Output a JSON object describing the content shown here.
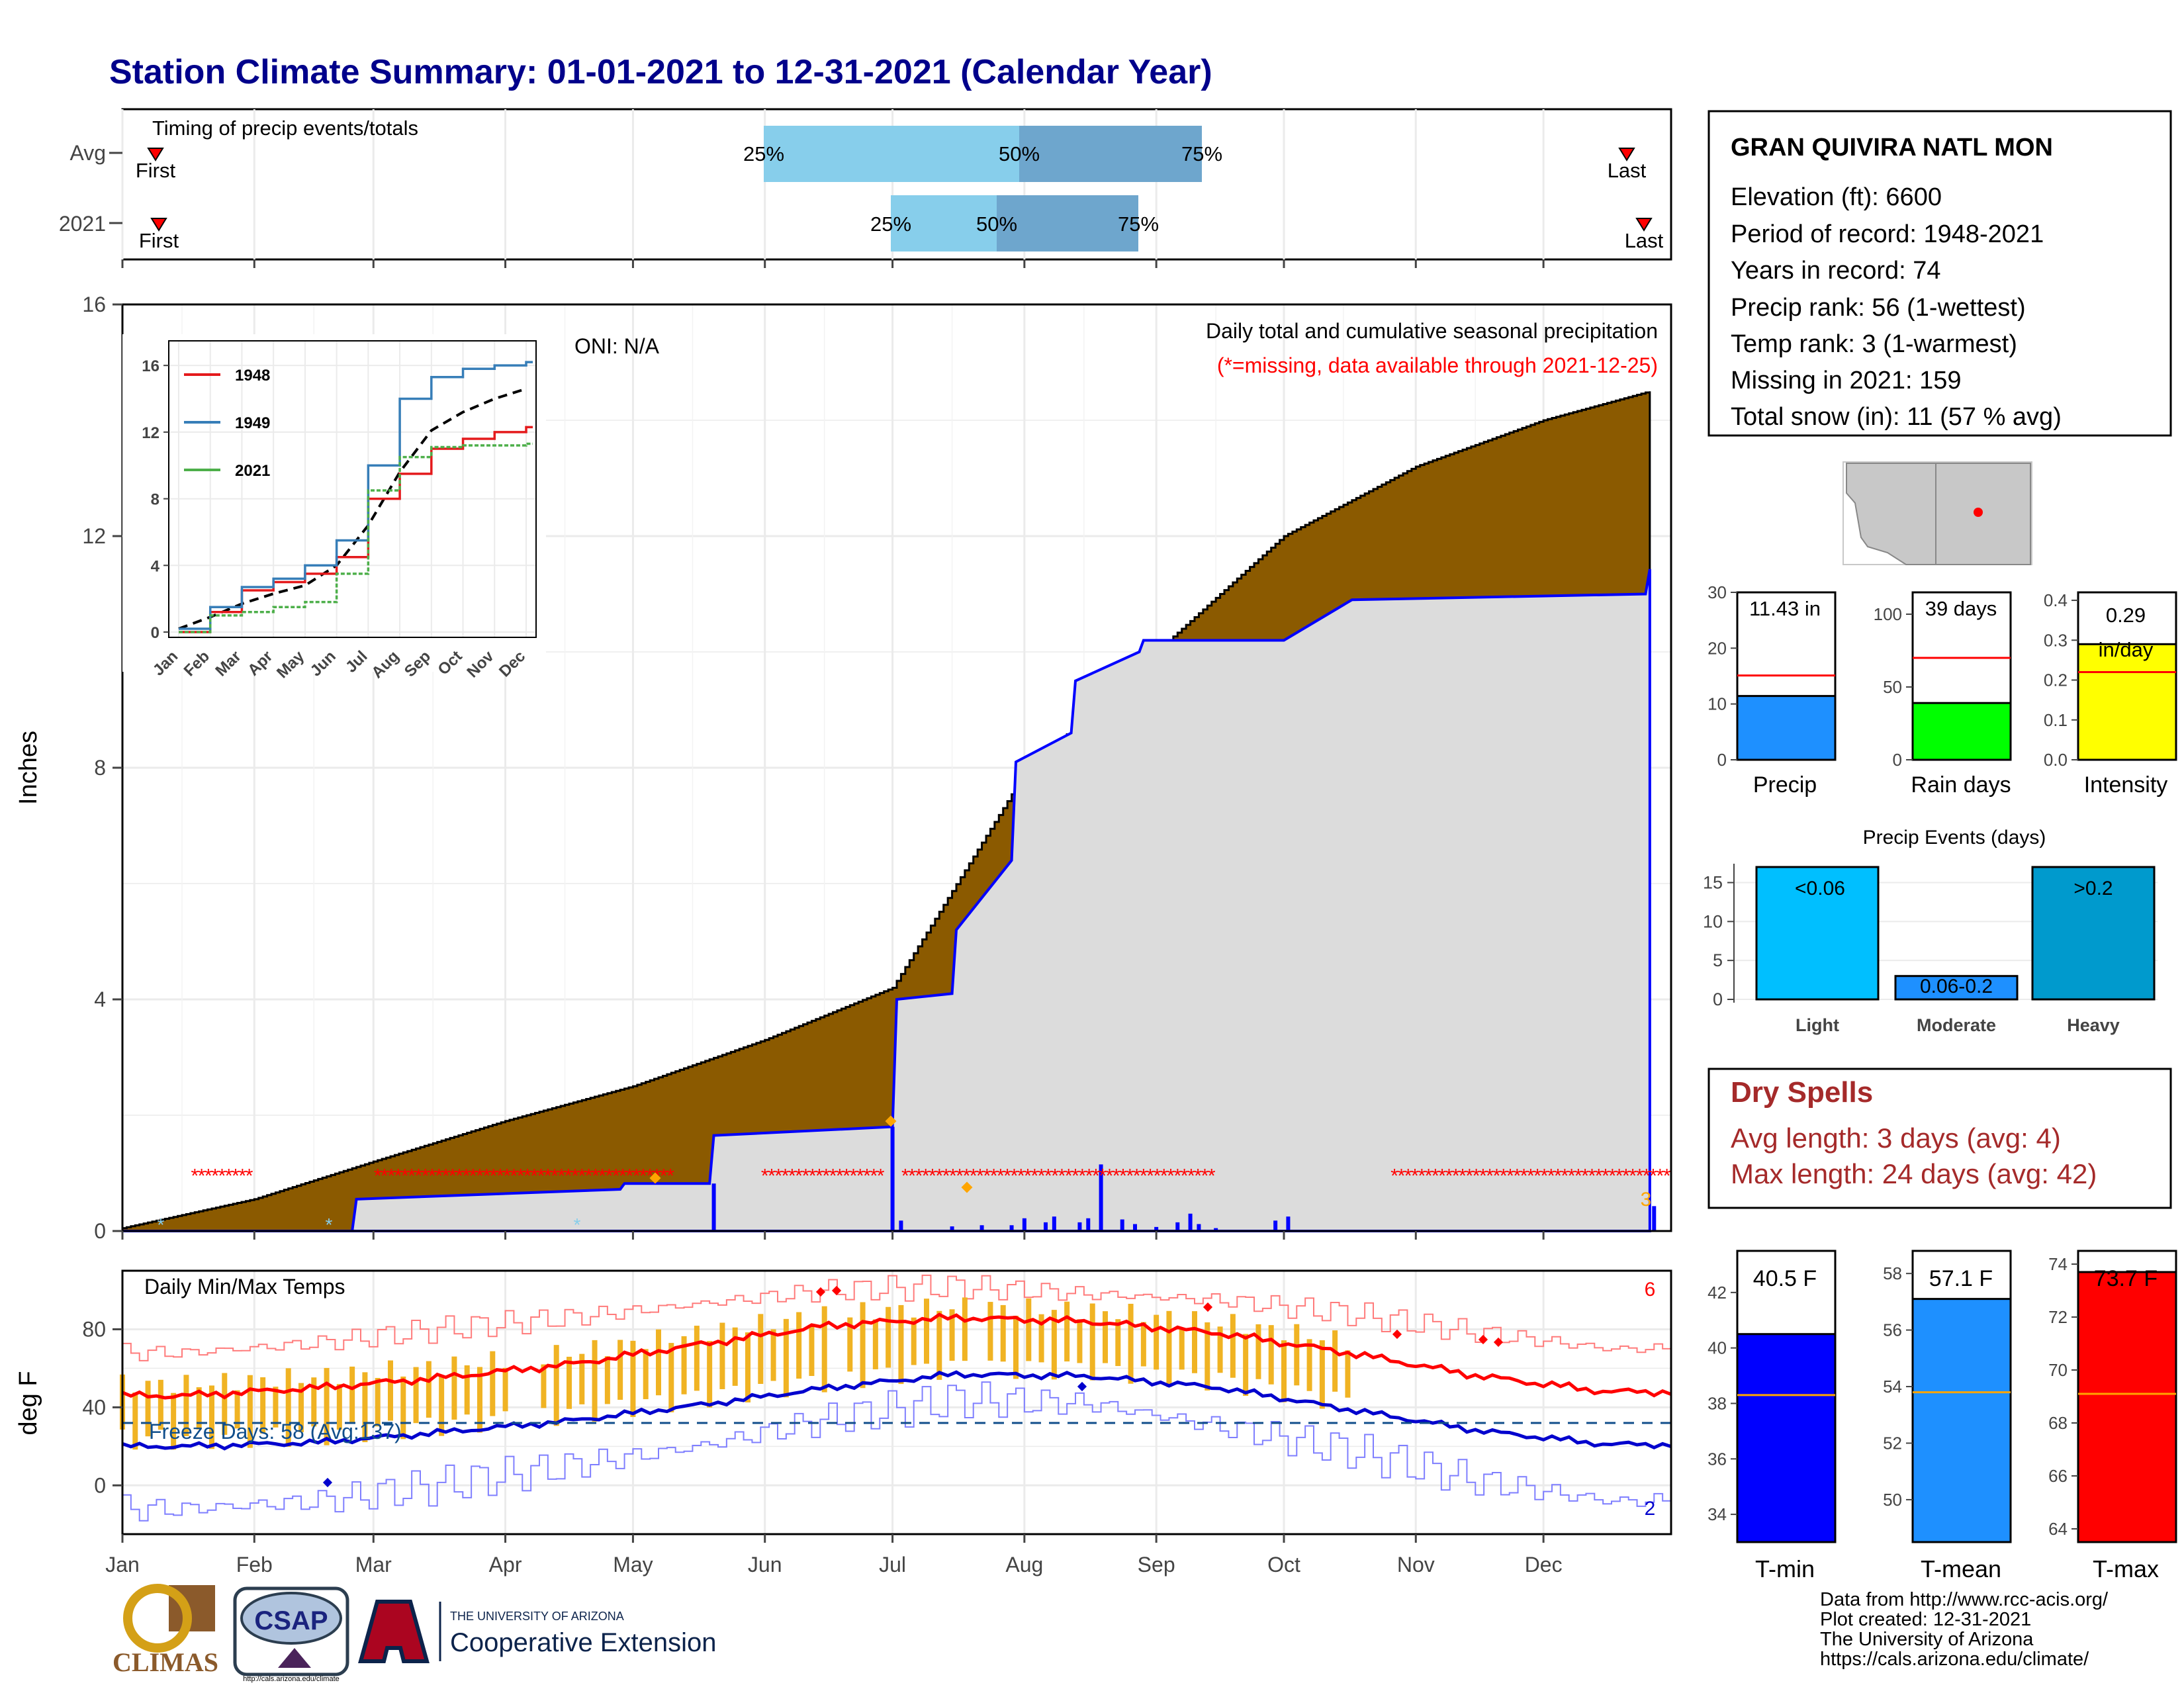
{
  "title": "Station Climate Summary: 01-01-2021 to 12-31-2021 (Calendar Year)",
  "timing": {
    "label": "Timing of precip events/totals",
    "rows": [
      {
        "name": "Avg",
        "first_label": "First",
        "last_label": "Last",
        "p25_label": "25%",
        "p50_label": "50%",
        "p75_label": "75%"
      },
      {
        "name": "2021",
        "first_label": "First",
        "last_label": "Last",
        "p25_label": "25%",
        "p50_label": "50%",
        "p75_label": "75%"
      }
    ]
  },
  "main_panel": {
    "ylabel": "Inches",
    "caption": "Daily total and cumulative seasonal precipitation",
    "missing_note": "(*=missing, data available through 2021-12-25)",
    "oni": "ONI: N/A",
    "corner_count": "3",
    "y_ticks": [
      "0",
      "4",
      "8",
      "12",
      "16"
    ]
  },
  "inset": {
    "y_ticks": [
      "0",
      "4",
      "8",
      "12",
      "16"
    ],
    "x_ticks": [
      "Jan",
      "Feb",
      "Mar",
      "Apr",
      "May",
      "Jun",
      "Jul",
      "Aug",
      "Sep",
      "Oct",
      "Nov",
      "Dec"
    ],
    "legend": [
      "1948",
      "1949",
      "2021"
    ]
  },
  "temp_panel": {
    "label": "Daily Min/Max Temps",
    "ylabel": "deg F",
    "freeze_text": "Freeze Days: 58 (Avg:137)",
    "count_max": "6",
    "count_min": "2",
    "y_ticks": [
      "0",
      "40",
      "80"
    ]
  },
  "months": [
    "Jan",
    "Feb",
    "Mar",
    "Apr",
    "May",
    "Jun",
    "Jul",
    "Aug",
    "Sep",
    "Oct",
    "Nov",
    "Dec"
  ],
  "station": {
    "name": "GRAN QUIVIRA NATL MON",
    "lines": [
      "Elevation (ft): 6600",
      "Period of record: 1948-2021",
      "Years in record: 74",
      "Precip rank: 56 (1-wettest)",
      "Temp rank: 3 (1-warmest)",
      "Missing in 2021: 159",
      "Total snow (in): 11 (57 % avg)"
    ]
  },
  "mini_bars": [
    {
      "label": "Precip",
      "value_label": "11.43 in",
      "ticks": [
        "0",
        "10",
        "20",
        "30"
      ]
    },
    {
      "label": "Rain days",
      "value_label": "39 days",
      "ticks": [
        "0",
        "50",
        "100"
      ]
    },
    {
      "label": "Intensity",
      "value_label": "0.29",
      "value_label2": "in/day",
      "ticks": [
        "0.0",
        "0.1",
        "0.2",
        "0.3",
        "0.4"
      ]
    }
  ],
  "events": {
    "title": "Precip Events (days)",
    "ticks": [
      "0",
      "5",
      "10",
      "15"
    ],
    "bars": [
      {
        "category": "Light",
        "label": "<0.06"
      },
      {
        "category": "Moderate",
        "label": "0.06-0.2"
      },
      {
        "category": "Heavy",
        "label": ">0.2"
      }
    ]
  },
  "dry_spells": {
    "title": "Dry Spells",
    "avg_line": "Avg length: 3 days (avg: 4)",
    "max_line": "Max length: 24 days (avg: 42)"
  },
  "temp_bars": [
    {
      "label": "T-min",
      "value_label": "40.5 F",
      "ticks": [
        "34",
        "36",
        "38",
        "40",
        "42"
      ]
    },
    {
      "label": "T-mean",
      "value_label": "57.1 F",
      "ticks": [
        "50",
        "52",
        "54",
        "56",
        "58"
      ]
    },
    {
      "label": "T-max",
      "value_label": "73.7 F",
      "ticks": [
        "64",
        "66",
        "68",
        "70",
        "72",
        "74"
      ]
    }
  ],
  "footer": {
    "lines": [
      "Data from http://www.rcc-acis.org/",
      "Plot created: 12-31-2021",
      "The University of Arizona",
      "https://cals.arizona.edu/climate/"
    ]
  },
  "logos": {
    "climas": "CLIMAS",
    "csap": "CSAP",
    "csap_url": "http://cals.arizona.edu/climate",
    "ua_line1": "THE UNIVERSITY OF ARIZONA",
    "ua_line2": "Cooperative Extension"
  },
  "colors": {
    "title": "#00008b",
    "avg_fill": "#8b5a00",
    "current_fill": "#dcdcdc",
    "current_line": "#0000ff",
    "missing": "#ff0000",
    "iqr_light": "#87ceeb",
    "iqr_dark": "#6ea6cd",
    "tmax": "#ff0000",
    "tmin": "#0000cd",
    "daily_bar": "#f0b323",
    "precip_bar": "#1e90ff",
    "rain_bar": "#00ff00",
    "intensity_bar": "#ffff00",
    "light_bar": "#00bfff",
    "moderate_bar": "#1e90ff",
    "heavy_bar": "#009acd",
    "dry_text": "#a52a2a"
  },
  "chart_data": [
    {
      "type": "area",
      "title": "Daily total and cumulative seasonal precipitation",
      "ylabel": "Inches",
      "ylim": [
        0,
        16
      ],
      "x_unit": "day of year",
      "series": [
        {
          "name": "avg_cumulative",
          "x": [
            1,
            32,
            60,
            91,
            121,
            152,
            182,
            213,
            244,
            274,
            305,
            335,
            360
          ],
          "values": [
            0.05,
            0.55,
            1.2,
            1.9,
            2.5,
            3.3,
            4.2,
            7.9,
            10.0,
            12.0,
            13.2,
            14.0,
            14.5
          ]
        },
        {
          "name": "2021_cumulative",
          "x": [
            1,
            55,
            56,
            118,
            119,
            139,
            140,
            182,
            183,
            196,
            197,
            210,
            211,
            224,
            225,
            240,
            241,
            274,
            290,
            359,
            360
          ],
          "values": [
            0,
            0,
            0.55,
            0.72,
            0.82,
            0.82,
            1.65,
            1.8,
            4.0,
            4.1,
            5.2,
            6.4,
            8.1,
            8.6,
            9.5,
            10.0,
            10.2,
            10.2,
            10.9,
            11.0,
            11.43
          ]
        }
      ],
      "daily_bars": {
        "x": [
          140,
          182,
          184,
          196,
          203,
          210,
          213,
          218,
          220,
          226,
          228,
          231,
          236,
          239,
          244,
          249,
          252,
          254,
          258,
          272,
          275,
          361
        ],
        "values": [
          0.82,
          1.8,
          0.18,
          0.08,
          0.1,
          0.1,
          0.22,
          0.15,
          0.25,
          0.15,
          0.22,
          1.15,
          0.2,
          0.12,
          0.07,
          0.15,
          0.3,
          0.12,
          0.05,
          0.18,
          0.25,
          0.43
        ]
      },
      "missing_ranges": [
        [
          18,
          32
        ],
        [
          61,
          130
        ],
        [
          152,
          180
        ],
        [
          185,
          257
        ],
        [
          300,
          365
        ]
      ]
    },
    {
      "type": "line",
      "title": "",
      "x": [
        "Jan",
        "Feb",
        "Mar",
        "Apr",
        "May",
        "Jun",
        "Jul",
        "Aug",
        "Sep",
        "Oct",
        "Nov",
        "Dec"
      ],
      "ylim": [
        0,
        16
      ],
      "series": [
        {
          "name": "1948",
          "values": [
            0.0,
            1.2,
            2.5,
            3.0,
            3.5,
            4.5,
            8.0,
            9.5,
            11.0,
            11.6,
            12.0,
            12.3
          ]
        },
        {
          "name": "1949",
          "values": [
            0.2,
            1.5,
            2.7,
            3.2,
            4.0,
            5.5,
            10.0,
            14.0,
            15.3,
            15.8,
            16.0,
            16.2
          ]
        },
        {
          "name": "2021",
          "values": [
            0.0,
            1.0,
            1.2,
            1.5,
            1.8,
            3.5,
            8.5,
            10.5,
            11.1,
            11.2,
            11.2,
            11.3
          ]
        }
      ]
    },
    {
      "type": "line",
      "title": "Daily Min/Max Temps",
      "ylabel": "deg F",
      "x": [
        "Jan",
        "Feb",
        "Mar",
        "Apr",
        "May",
        "Jun",
        "Jul",
        "Aug",
        "Sep",
        "Oct",
        "Nov",
        "Dec"
      ],
      "ylim": [
        -25,
        110
      ],
      "series": [
        {
          "name": "avg_max",
          "values": [
            46,
            50,
            55,
            62,
            72,
            82,
            86,
            84,
            78,
            68,
            56,
            48
          ]
        },
        {
          "name": "avg_min",
          "values": [
            20,
            22,
            27,
            33,
            41,
            50,
            57,
            56,
            50,
            39,
            28,
            21
          ]
        },
        {
          "name": "record_max",
          "values": [
            68,
            73,
            80,
            86,
            93,
            100,
            102,
            98,
            95,
            88,
            78,
            70
          ]
        },
        {
          "name": "record_min",
          "values": [
            -12,
            -8,
            0,
            10,
            20,
            34,
            44,
            42,
            30,
            18,
            2,
            -8
          ]
        }
      ],
      "freeze_line": 32
    },
    {
      "type": "bar",
      "categories": [
        "Light",
        "Moderate",
        "Heavy"
      ],
      "values": [
        17,
        3,
        17
      ],
      "ylim": [
        0,
        17
      ]
    },
    {
      "type": "bar",
      "categories": [
        "Precip",
        "Rain days",
        "Intensity"
      ],
      "values": [
        11.43,
        39,
        0.29
      ],
      "averages": [
        15.1,
        70,
        0.22
      ]
    },
    {
      "type": "bar",
      "categories": [
        "T-min",
        "T-mean",
        "T-max"
      ],
      "values": [
        40.5,
        57.1,
        73.7
      ],
      "averages": [
        38.3,
        53.8,
        69.1
      ]
    }
  ]
}
